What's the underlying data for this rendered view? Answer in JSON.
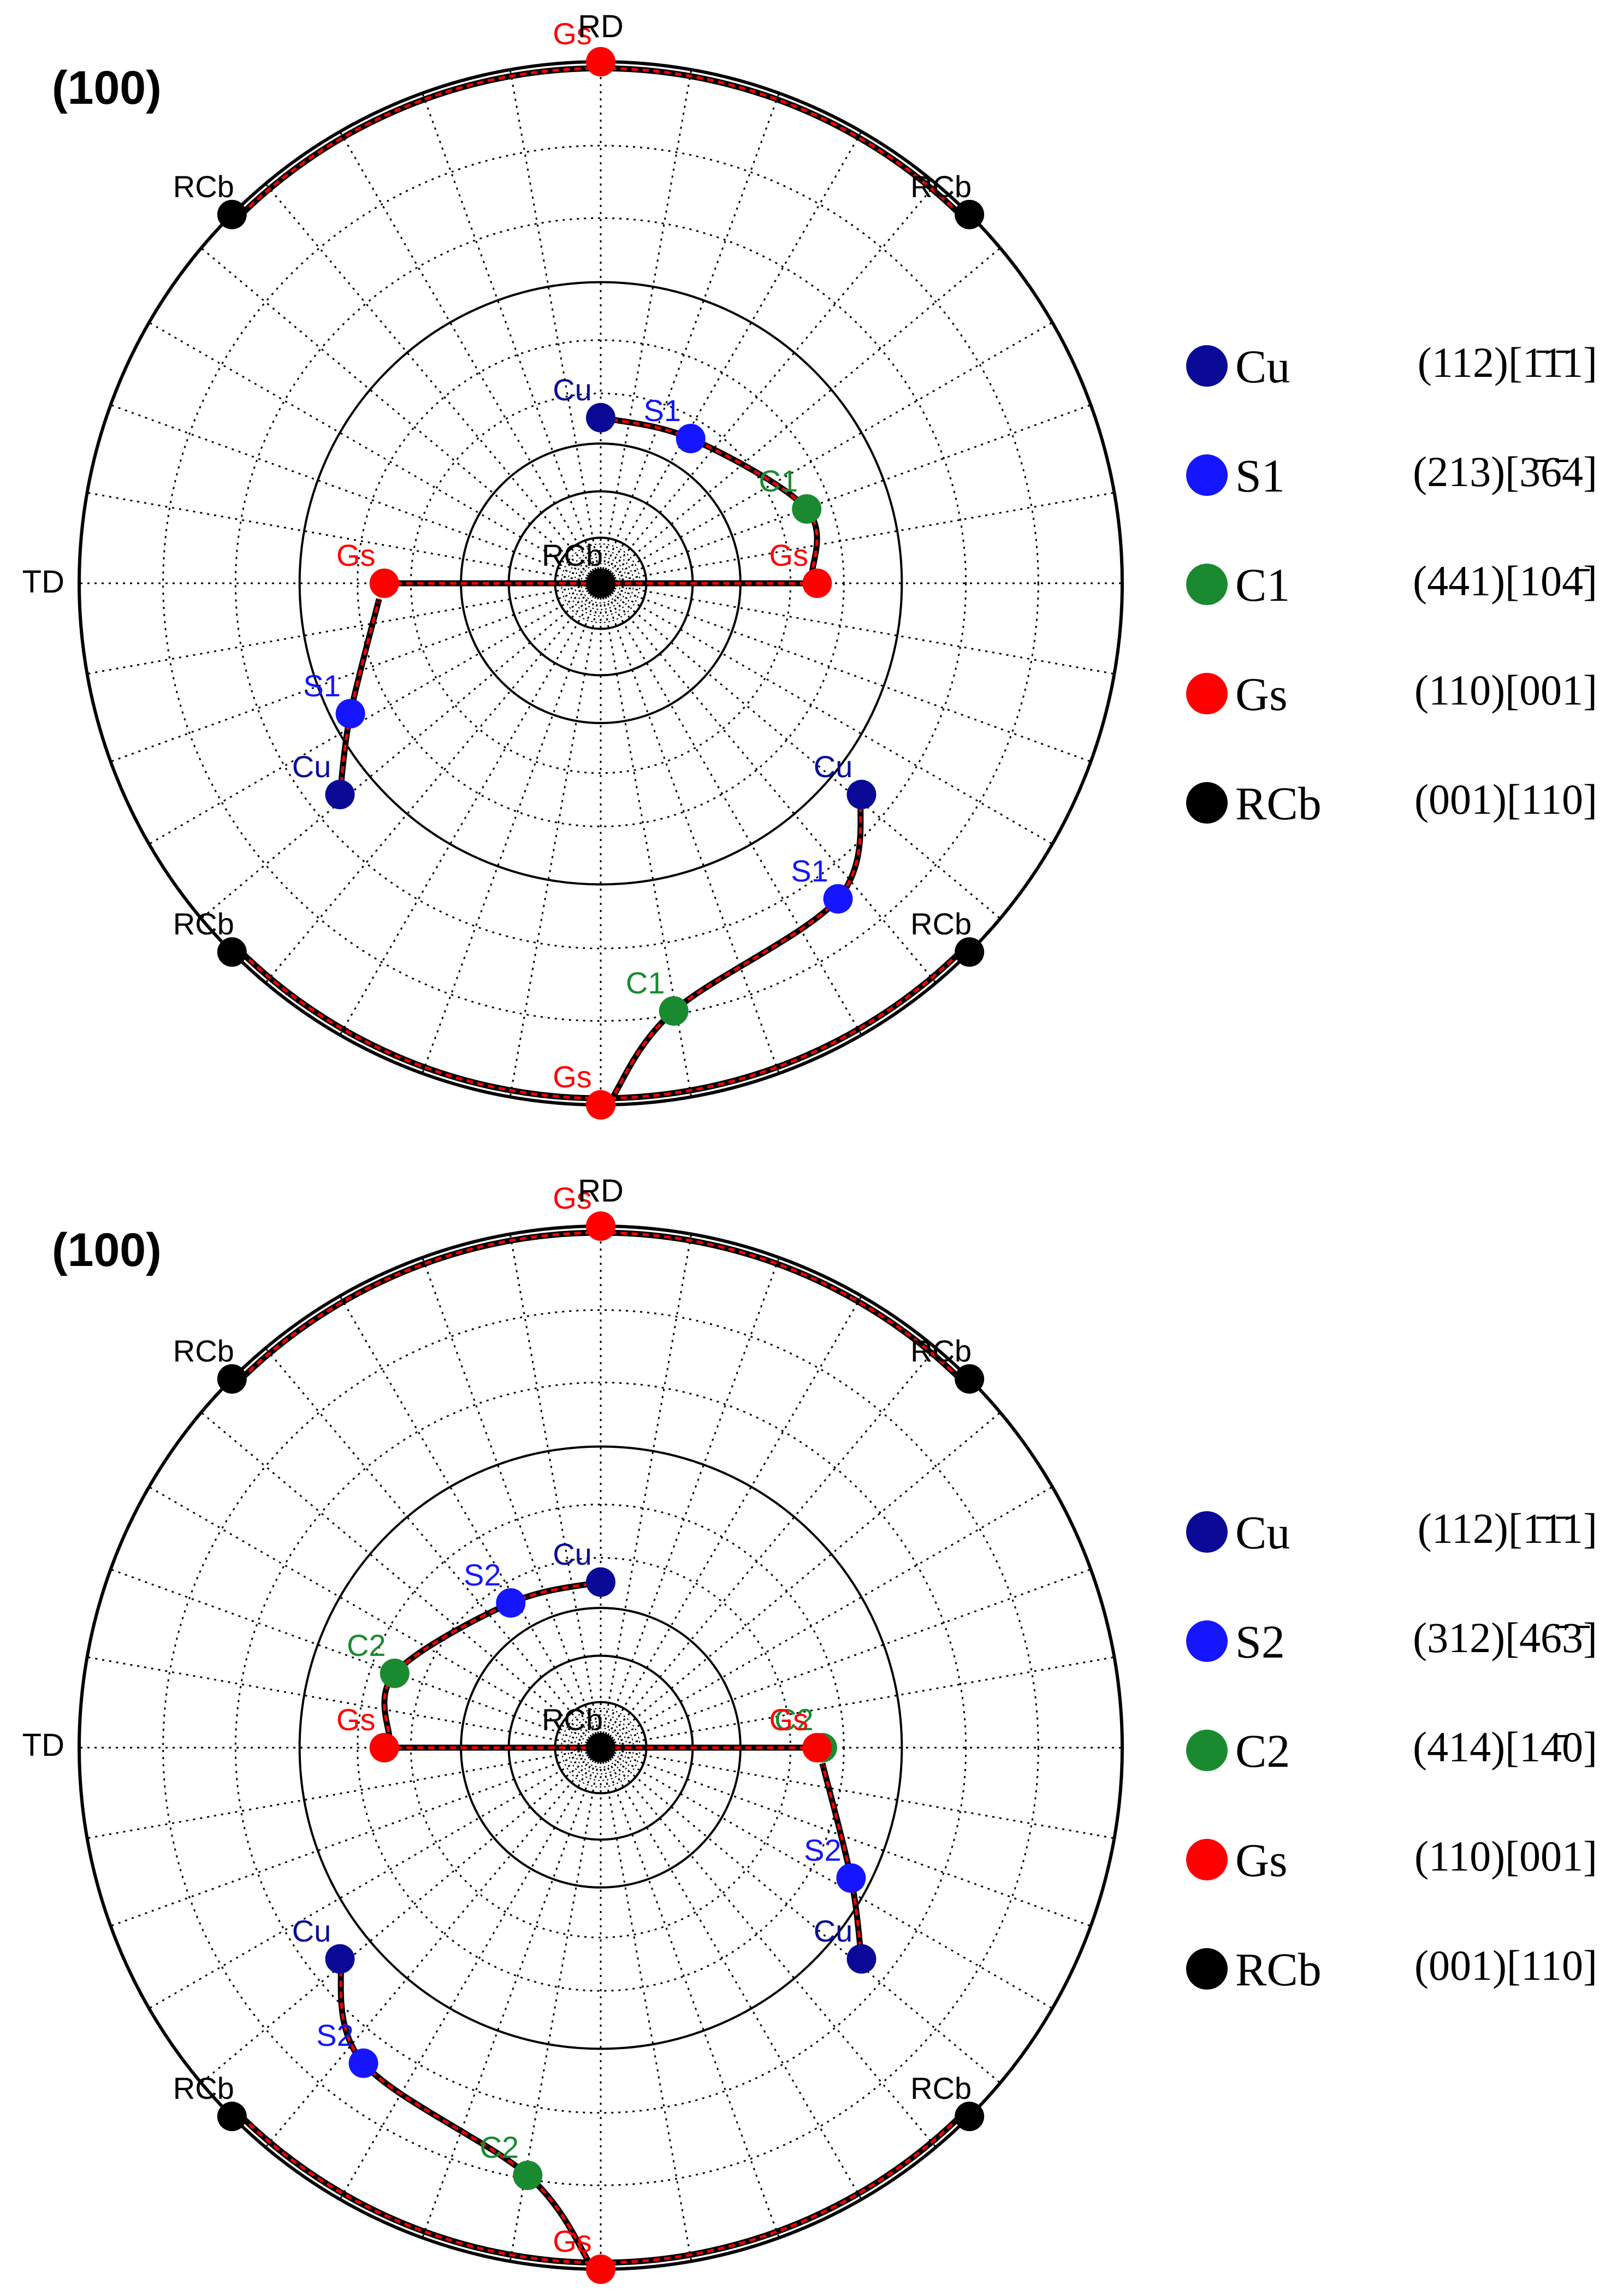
{
  "chart_data": [
    {
      "type": "pole-figure",
      "title": "(100)",
      "axis_labels": {
        "top": "RD",
        "left": "TD"
      },
      "colors": {
        "Cu": "#0a0a96",
        "S1": "#1515ff",
        "C1": "#1a8a30",
        "Gs": "#ff0000",
        "RCb": "#000000",
        "Cu_label": "#0a0a96",
        "S1_label": "#1515ff",
        "C1_label": "#1a8a30",
        "Gs_label": "#ff0000",
        "RCb_label": "#000000"
      },
      "points": [
        {
          "type": "Cu",
          "label": "Cu",
          "x": 0.0,
          "y": 0.635
        },
        {
          "type": "S1",
          "label": "S1",
          "x": 0.345,
          "y": 0.555
        },
        {
          "type": "C1",
          "label": "C1",
          "x": 0.79,
          "y": 0.285
        },
        {
          "type": "Gs",
          "label": "Gs",
          "x": 0.83,
          "y": 0.0
        },
        {
          "type": "Gs",
          "label": "Gs",
          "x": -0.83,
          "y": 0.0
        },
        {
          "type": "S1",
          "label": "S1",
          "x": -0.96,
          "y": -0.5
        },
        {
          "type": "Cu",
          "label": "Cu",
          "x": -1.0,
          "y": -0.81
        },
        {
          "type": "Cu",
          "label": "Cu",
          "x": 1.0,
          "y": -0.81
        },
        {
          "type": "S1",
          "label": "S1",
          "x": 0.91,
          "y": -1.21
        },
        {
          "type": "C1",
          "label": "C1",
          "x": 0.28,
          "y": -1.64
        },
        {
          "type": "Gs",
          "label": "Gs",
          "x": 0.0,
          "y": -2.0
        },
        {
          "type": "Gs",
          "label": "Gs",
          "x": 0.0,
          "y": 2.0
        },
        {
          "type": "RCb",
          "label": "RCb",
          "x": -1.414,
          "y": 1.414
        },
        {
          "type": "RCb",
          "label": "RCb",
          "x": 1.414,
          "y": 1.414
        },
        {
          "type": "RCb",
          "label": "RCb",
          "x": -1.414,
          "y": -1.414
        },
        {
          "type": "RCb",
          "label": "RCb",
          "x": 1.414,
          "y": -1.414
        },
        {
          "type": "RCb",
          "label": "RCb",
          "x": 0.0,
          "y": 0.0
        }
      ],
      "legend": [
        {
          "type": "Cu",
          "name": "Cu",
          "indices": "(112)[1̄1̄1]"
        },
        {
          "type": "S1",
          "name": "S1",
          "indices": "(213)[3̄6̄4]"
        },
        {
          "type": "C1",
          "name": "C1",
          "indices": "(441)[104̄]"
        },
        {
          "type": "Gs",
          "name": "Gs",
          "indices": "(110)[001]"
        },
        {
          "type": "RCb",
          "name": "RCb",
          "indices": "(001)[110]"
        }
      ]
    },
    {
      "type": "pole-figure",
      "title": "(100)",
      "axis_labels": {
        "top": "RD",
        "left": "TD"
      },
      "colors": {
        "Cu": "#0a0a96",
        "S2": "#1515ff",
        "C2": "#1a8a30",
        "Gs": "#ff0000",
        "RCb": "#000000",
        "Cu_label": "#0a0a96",
        "S2_label": "#1515ff",
        "C2_label": "#1a8a30",
        "Gs_label": "#ff0000",
        "RCb_label": "#000000"
      },
      "points": [
        {
          "type": "Cu",
          "label": "Cu",
          "x": 0.0,
          "y": 0.635
        },
        {
          "type": "S2",
          "label": "S2",
          "x": -0.345,
          "y": 0.555
        },
        {
          "type": "C2",
          "label": "C2",
          "x": -0.79,
          "y": 0.285
        },
        {
          "type": "Gs",
          "label": "Gs",
          "x": -0.83,
          "y": 0.0
        },
        {
          "type": "C2",
          "label": "C2",
          "x": 0.85,
          "y": 0.0
        },
        {
          "type": "Gs",
          "label": "Gs",
          "x": 0.83,
          "y": 0.0
        },
        {
          "type": "S2",
          "label": "S2",
          "x": 0.96,
          "y": -0.5
        },
        {
          "type": "Cu",
          "label": "Cu",
          "x": 1.0,
          "y": -0.81
        },
        {
          "type": "Cu",
          "label": "Cu",
          "x": -1.0,
          "y": -0.81
        },
        {
          "type": "S2",
          "label": "S2",
          "x": -0.91,
          "y": -1.21
        },
        {
          "type": "C2",
          "label": "C2",
          "x": -0.28,
          "y": -1.64
        },
        {
          "type": "Gs",
          "label": "Gs",
          "x": 0.0,
          "y": -2.0
        },
        {
          "type": "Gs",
          "label": "Gs",
          "x": 0.0,
          "y": 2.0
        },
        {
          "type": "RCb",
          "label": "RCb",
          "x": -1.414,
          "y": 1.414
        },
        {
          "type": "RCb",
          "label": "RCb",
          "x": 1.414,
          "y": 1.414
        },
        {
          "type": "RCb",
          "label": "RCb",
          "x": -1.414,
          "y": -1.414
        },
        {
          "type": "RCb",
          "label": "RCb",
          "x": 1.414,
          "y": -1.414
        },
        {
          "type": "RCb",
          "label": "RCb",
          "x": 0.0,
          "y": 0.0
        }
      ],
      "legend": [
        {
          "type": "Cu",
          "name": "Cu",
          "indices": "(112)[1̄1̄1]"
        },
        {
          "type": "S2",
          "name": "S2",
          "indices": "(312)[46̄3̄]"
        },
        {
          "type": "C2",
          "name": "C2",
          "indices": "(414)[14̄0]"
        },
        {
          "type": "Gs",
          "name": "Gs",
          "indices": "(110)[001]"
        },
        {
          "type": "RCb",
          "name": "RCb",
          "indices": "(001)[110]"
        }
      ]
    }
  ]
}
